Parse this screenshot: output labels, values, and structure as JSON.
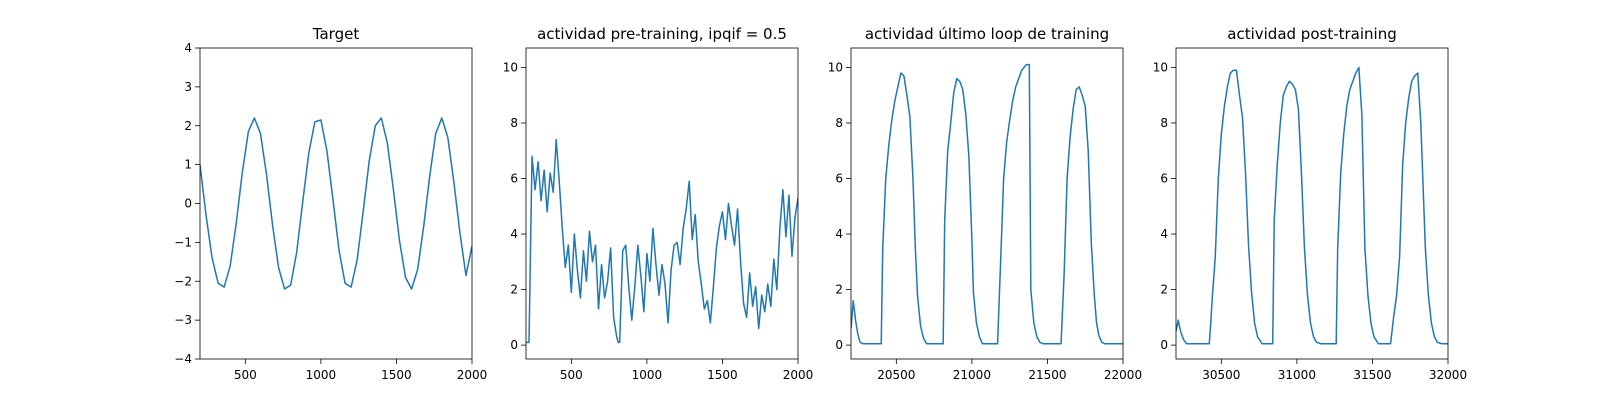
{
  "figure": {
    "background": "#ffffff"
  },
  "chart_data": [
    {
      "type": "line",
      "title": "Target",
      "xlabel": "",
      "ylabel": "",
      "xlim": [
        200,
        2000
      ],
      "ylim": [
        -4,
        4
      ],
      "xticks": [
        500,
        1000,
        1500,
        2000
      ],
      "yticks": [
        -4,
        -3,
        -2,
        -1,
        0,
        1,
        2,
        3,
        4
      ],
      "grid": false,
      "series": [
        {
          "color": "#1f77b4",
          "x": [
            200,
            240,
            280,
            320,
            360,
            400,
            440,
            480,
            520,
            560,
            600,
            640,
            680,
            720,
            760,
            800,
            840,
            880,
            920,
            960,
            1000,
            1040,
            1080,
            1120,
            1160,
            1200,
            1240,
            1280,
            1320,
            1360,
            1400,
            1440,
            1480,
            1520,
            1560,
            1600,
            1640,
            1680,
            1720,
            1760,
            1800,
            1840,
            1880,
            1920,
            1960,
            2000
          ],
          "y": [
            1.0,
            -0.3,
            -1.4,
            -2.05,
            -2.15,
            -1.6,
            -0.5,
            0.8,
            1.85,
            2.2,
            1.8,
            0.75,
            -0.55,
            -1.65,
            -2.2,
            -2.1,
            -1.25,
            0.05,
            1.3,
            2.1,
            2.15,
            1.35,
            0.1,
            -1.2,
            -2.05,
            -2.15,
            -1.45,
            -0.2,
            1.1,
            2.0,
            2.2,
            1.55,
            0.35,
            -0.95,
            -1.9,
            -2.2,
            -1.7,
            -0.6,
            0.7,
            1.8,
            2.2,
            1.7,
            0.55,
            -0.75,
            -1.85,
            -1.1
          ]
        }
      ]
    },
    {
      "type": "line",
      "title": "actividad pre-training, ipqif = 0.5",
      "xlabel": "",
      "ylabel": "",
      "xlim": [
        200,
        2000
      ],
      "ylim": [
        -0.5,
        10.7
      ],
      "xticks": [
        500,
        1000,
        1500,
        2000
      ],
      "yticks": [
        0,
        2,
        4,
        6,
        8,
        10
      ],
      "grid": false,
      "series": [
        {
          "color": "#1f77b4",
          "x": [
            200,
            220,
            230,
            240,
            260,
            280,
            300,
            320,
            340,
            360,
            380,
            400,
            420,
            440,
            460,
            480,
            500,
            520,
            540,
            560,
            580,
            600,
            620,
            640,
            660,
            680,
            700,
            720,
            740,
            760,
            780,
            800,
            810,
            820,
            840,
            860,
            880,
            900,
            920,
            940,
            960,
            980,
            1000,
            1020,
            1040,
            1060,
            1080,
            1100,
            1120,
            1140,
            1160,
            1180,
            1200,
            1220,
            1240,
            1260,
            1280,
            1300,
            1320,
            1340,
            1360,
            1380,
            1400,
            1420,
            1440,
            1460,
            1480,
            1500,
            1520,
            1540,
            1560,
            1580,
            1600,
            1620,
            1640,
            1660,
            1680,
            1700,
            1720,
            1740,
            1760,
            1780,
            1800,
            1820,
            1840,
            1860,
            1880,
            1900,
            1920,
            1940,
            1960,
            1980,
            2000
          ],
          "y": [
            0.1,
            0.1,
            3.5,
            6.8,
            5.6,
            6.6,
            5.2,
            6.3,
            4.8,
            6.2,
            5.5,
            7.4,
            5.9,
            4.2,
            2.8,
            3.6,
            1.9,
            4.0,
            2.7,
            1.7,
            3.4,
            2.3,
            4.1,
            3.0,
            3.6,
            1.3,
            2.9,
            1.7,
            2.3,
            3.5,
            1.0,
            0.3,
            0.1,
            0.1,
            3.4,
            3.6,
            2.1,
            0.9,
            2.1,
            3.6,
            2.5,
            1.2,
            3.3,
            2.3,
            4.2,
            2.9,
            1.8,
            2.9,
            2.2,
            0.8,
            2.7,
            3.6,
            3.7,
            2.9,
            4.2,
            4.9,
            5.9,
            3.8,
            4.7,
            3.0,
            2.2,
            1.3,
            1.6,
            0.8,
            2.1,
            3.5,
            4.3,
            4.8,
            3.8,
            5.1,
            4.3,
            3.6,
            4.9,
            3.0,
            1.5,
            1.0,
            2.6,
            1.4,
            2.1,
            0.6,
            1.8,
            1.2,
            2.2,
            1.4,
            3.1,
            2.0,
            4.2,
            5.6,
            3.9,
            5.4,
            3.2,
            4.6,
            5.3
          ]
        }
      ]
    },
    {
      "type": "line",
      "title": "actividad último loop de training",
      "xlabel": "",
      "ylabel": "",
      "xlim": [
        20200,
        22000
      ],
      "ylim": [
        -0.5,
        10.7
      ],
      "xticks": [
        20500,
        21000,
        21500,
        22000
      ],
      "yticks": [
        0,
        2,
        4,
        6,
        8,
        10
      ],
      "grid": false,
      "series": [
        {
          "color": "#1f77b4",
          "x": [
            20200,
            20215,
            20230,
            20245,
            20260,
            20280,
            20300,
            20320,
            20340,
            20360,
            20380,
            20400,
            20410,
            20430,
            20450,
            20470,
            20490,
            20510,
            20530,
            20550,
            20570,
            20590,
            20610,
            20625,
            20640,
            20660,
            20680,
            20700,
            20720,
            20740,
            20760,
            20790,
            20810,
            20820,
            20840,
            20860,
            20880,
            20900,
            20920,
            20940,
            20960,
            20980,
            21000,
            21010,
            21030,
            21050,
            21070,
            21090,
            21110,
            21130,
            21150,
            21170,
            21190,
            21210,
            21230,
            21250,
            21270,
            21290,
            21310,
            21330,
            21360,
            21380,
            21390,
            21410,
            21430,
            21450,
            21470,
            21490,
            21510,
            21530,
            21550,
            21570,
            21590,
            21610,
            21630,
            21650,
            21670,
            21690,
            21710,
            21730,
            21750,
            21770,
            21790,
            21810,
            21825,
            21840,
            21860,
            21880,
            21900,
            21920,
            21940,
            21960,
            21980,
            22000
          ],
          "y": [
            0.6,
            1.6,
            0.9,
            0.4,
            0.1,
            0.05,
            0.05,
            0.05,
            0.05,
            0.05,
            0.05,
            0.05,
            3.5,
            6.0,
            7.2,
            8.1,
            8.8,
            9.3,
            9.8,
            9.7,
            9.0,
            8.2,
            6.0,
            3.6,
            1.8,
            0.7,
            0.25,
            0.05,
            0.05,
            0.05,
            0.05,
            0.05,
            0.05,
            4.5,
            7.0,
            8.0,
            9.1,
            9.6,
            9.5,
            9.2,
            8.3,
            6.8,
            3.8,
            1.9,
            0.8,
            0.3,
            0.05,
            0.05,
            0.05,
            0.05,
            0.05,
            0.05,
            3.0,
            6.0,
            7.3,
            8.1,
            8.8,
            9.3,
            9.6,
            9.9,
            10.1,
            10.1,
            2.0,
            0.8,
            0.3,
            0.1,
            0.05,
            0.05,
            0.05,
            0.05,
            0.05,
            0.05,
            0.05,
            2.5,
            6.0,
            7.5,
            8.5,
            9.2,
            9.3,
            9.0,
            8.6,
            7.0,
            3.7,
            1.8,
            0.8,
            0.35,
            0.1,
            0.05,
            0.05,
            0.05,
            0.05,
            0.05,
            0.05,
            0.05
          ]
        }
      ]
    },
    {
      "type": "line",
      "title": "actividad post-training",
      "xlabel": "",
      "ylabel": "",
      "xlim": [
        30200,
        32000
      ],
      "ylim": [
        -0.5,
        10.7
      ],
      "xticks": [
        30500,
        31000,
        31500,
        32000
      ],
      "yticks": [
        0,
        2,
        4,
        6,
        8,
        10
      ],
      "grid": false,
      "series": [
        {
          "color": "#1f77b4",
          "x": [
            30200,
            30215,
            30230,
            30250,
            30270,
            30300,
            30330,
            30360,
            30390,
            30420,
            30430,
            30440,
            30460,
            30480,
            30500,
            30520,
            30540,
            30560,
            30580,
            30600,
            30620,
            30640,
            30660,
            30680,
            30700,
            30720,
            30740,
            30770,
            30800,
            30840,
            30850,
            30870,
            30890,
            30910,
            30930,
            30950,
            30970,
            30990,
            31010,
            31030,
            31050,
            31070,
            31090,
            31110,
            31130,
            31160,
            31200,
            31240,
            31260,
            31270,
            31290,
            31310,
            31330,
            31350,
            31370,
            31390,
            31410,
            31430,
            31450,
            31470,
            31490,
            31510,
            31540,
            31580,
            31620,
            31640,
            31660,
            31680,
            31700,
            31720,
            31740,
            31760,
            31780,
            31800,
            31820,
            31830,
            31850,
            31870,
            31890,
            31910,
            31930,
            31960,
            32000
          ],
          "y": [
            0.5,
            0.9,
            0.5,
            0.2,
            0.05,
            0.05,
            0.05,
            0.05,
            0.05,
            0.05,
            0.8,
            1.7,
            3.2,
            6.0,
            7.6,
            8.6,
            9.3,
            9.8,
            9.9,
            9.9,
            9.0,
            8.2,
            6.2,
            3.6,
            1.9,
            0.8,
            0.3,
            0.05,
            0.05,
            0.05,
            4.5,
            6.5,
            8.0,
            9.0,
            9.3,
            9.5,
            9.4,
            9.2,
            8.5,
            6.2,
            3.5,
            1.8,
            0.8,
            0.3,
            0.1,
            0.05,
            0.05,
            0.05,
            0.05,
            3.5,
            6.2,
            7.6,
            8.6,
            9.2,
            9.5,
            9.8,
            10.0,
            8.3,
            3.5,
            1.8,
            0.8,
            0.3,
            0.05,
            0.05,
            0.05,
            1.0,
            1.8,
            3.2,
            6.5,
            8.0,
            8.9,
            9.5,
            9.7,
            9.8,
            8.0,
            6.5,
            3.5,
            1.8,
            0.8,
            0.3,
            0.1,
            0.05,
            0.05
          ]
        }
      ]
    }
  ]
}
